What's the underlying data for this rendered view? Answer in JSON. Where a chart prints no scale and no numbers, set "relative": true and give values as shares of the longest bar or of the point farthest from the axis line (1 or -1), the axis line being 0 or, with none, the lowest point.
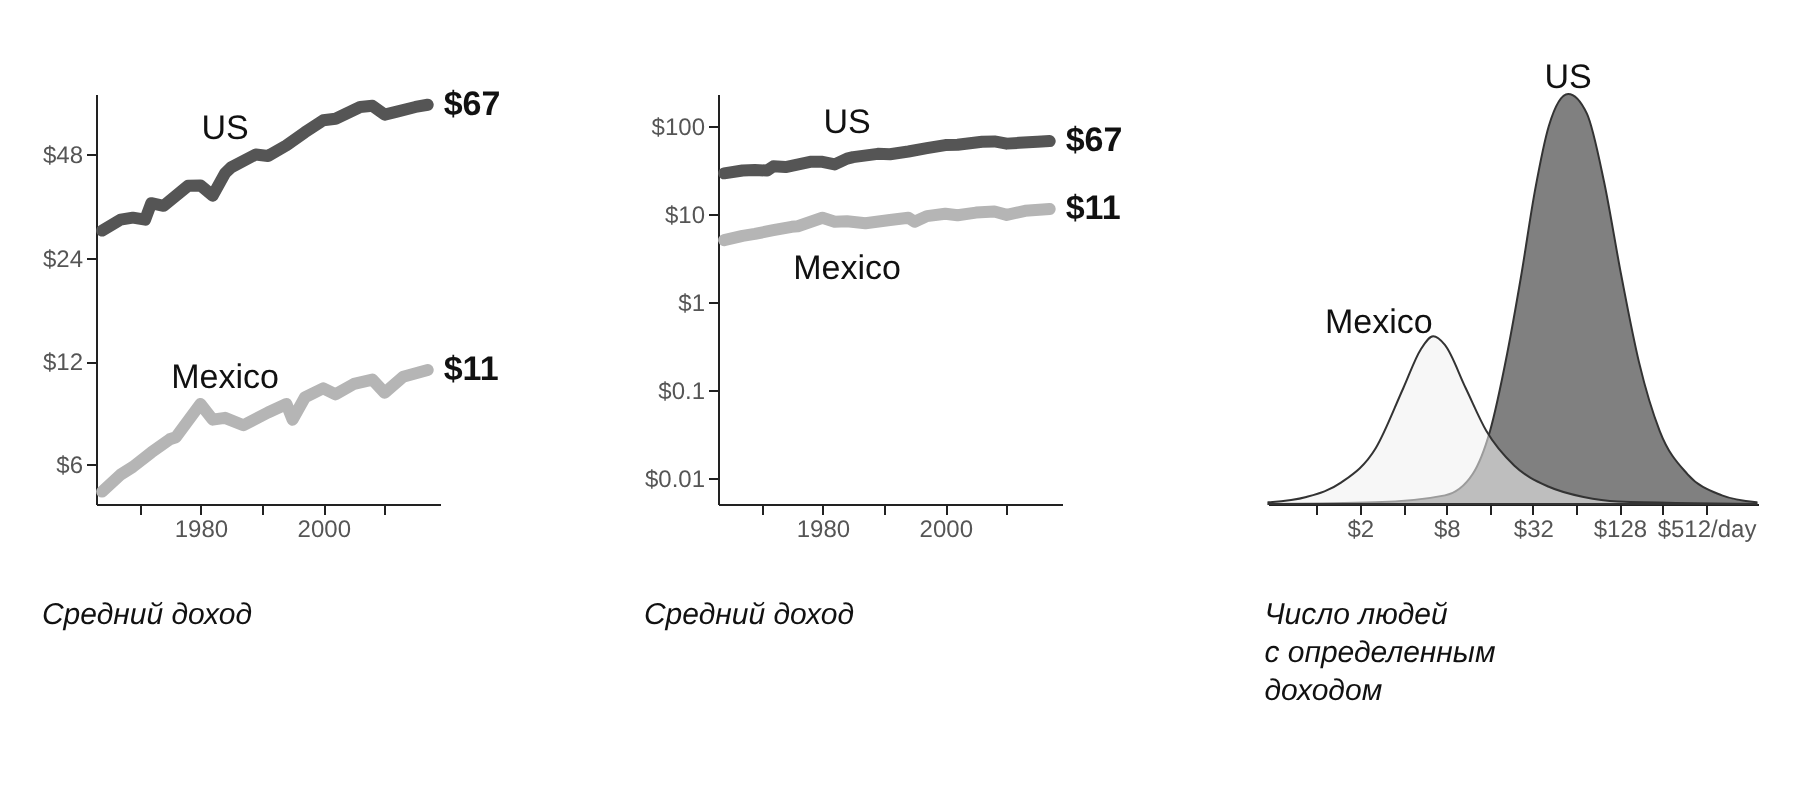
{
  "chart_data": [
    {
      "type": "line",
      "annotations": [
        "Средний доход"
      ],
      "log": "y",
      "grid": false,
      "xlim": [
        1963,
        2019
      ],
      "xticks": [
        {
          "value": 1970,
          "label": null
        },
        1980,
        {
          "value": 1990,
          "label": null
        },
        2000,
        {
          "value": 2010,
          "label": null
        }
      ],
      "ylim": [
        4.6,
        72
      ],
      "yticks": [
        {
          "value": 6,
          "label": "$6"
        },
        {
          "value": 12,
          "label": "$12"
        },
        {
          "value": 24,
          "label": "$24"
        },
        {
          "value": 48,
          "label": "$48"
        }
      ],
      "series": [
        {
          "name": "US",
          "color": "#555555",
          "x": [
            1964,
            1967,
            1969,
            1971,
            1972,
            1974,
            1978,
            1980,
            1982,
            1984,
            1985,
            1989,
            1991,
            1994,
            1997,
            2000,
            2002,
            2006,
            2008,
            2010,
            2012,
            2015,
            2017
          ],
          "values": [
            28.8,
            31,
            31.4,
            31,
            34.6,
            34,
            38.9,
            39,
            36.4,
            42.3,
            44,
            48,
            47.5,
            51,
            55.7,
            60.4,
            61,
            66,
            66.5,
            62.7,
            64,
            66,
            67
          ],
          "value_labels": [
            null,
            null,
            null,
            null,
            null,
            null,
            null,
            null,
            null,
            null,
            null,
            null,
            null,
            null,
            null,
            null,
            null,
            null,
            null,
            null,
            null,
            null,
            "$67"
          ]
        },
        {
          "name": "Mexico",
          "color": "#b5b5b5",
          "x": [
            1964,
            1967,
            1969,
            1972,
            1975,
            1976,
            1980,
            1982,
            1984,
            1987,
            1991,
            1994,
            1995,
            1997,
            2000,
            2002,
            2005,
            2008,
            2010,
            2013,
            2017
          ],
          "values": [
            5.0,
            5.6,
            5.9,
            6.5,
            7.1,
            7.2,
            9.0,
            8.1,
            8.2,
            7.8,
            8.5,
            9.0,
            8.1,
            9.4,
            10.0,
            9.6,
            10.3,
            10.6,
            9.7,
            10.8,
            11.3
          ],
          "value_labels": [
            null,
            null,
            null,
            null,
            null,
            null,
            null,
            null,
            null,
            null,
            null,
            null,
            null,
            null,
            null,
            null,
            null,
            null,
            null,
            null,
            "$11"
          ]
        }
      ]
    },
    {
      "type": "line",
      "annotations": [
        "Средний доход"
      ],
      "log": "y",
      "grid": false,
      "xlim": [
        1963,
        2019
      ],
      "xticks": [
        {
          "value": 1970,
          "label": null
        },
        1980,
        {
          "value": 1990,
          "label": null
        },
        2000,
        {
          "value": 2010,
          "label": null
        }
      ],
      "ylim": [
        0.005,
        230
      ],
      "yticks": [
        {
          "value": 0.01,
          "label": "$0.01"
        },
        {
          "value": 0.1,
          "label": "$0.1"
        },
        {
          "value": 1,
          "label": "$1"
        },
        {
          "value": 10,
          "label": "$10"
        },
        {
          "value": 100,
          "label": "$100"
        }
      ],
      "series": [
        {
          "name": "US",
          "color": "#555555",
          "x": [
            1964,
            1967,
            1969,
            1971,
            1972,
            1974,
            1978,
            1980,
            1982,
            1984,
            1985,
            1989,
            1991,
            1994,
            1997,
            2000,
            2002,
            2006,
            2008,
            2010,
            2012,
            2015,
            2017
          ],
          "values": [
            28.8,
            31,
            31.4,
            31,
            34.6,
            34,
            38.9,
            39,
            36.4,
            42.3,
            44,
            48,
            47.5,
            51,
            55.7,
            60.4,
            61,
            66,
            66.5,
            62.7,
            64,
            66,
            67
          ],
          "value_labels": [
            null,
            null,
            null,
            null,
            null,
            null,
            null,
            null,
            null,
            null,
            null,
            null,
            null,
            null,
            null,
            null,
            null,
            null,
            null,
            null,
            null,
            null,
            "$67"
          ]
        },
        {
          "name": "Mexico",
          "color": "#b5b5b5",
          "x": [
            1964,
            1967,
            1969,
            1972,
            1975,
            1976,
            1980,
            1982,
            1984,
            1987,
            1991,
            1994,
            1995,
            1997,
            2000,
            2002,
            2005,
            2008,
            2010,
            2013,
            2017
          ],
          "values": [
            5.0,
            5.6,
            5.9,
            6.5,
            7.1,
            7.2,
            9.0,
            8.1,
            8.2,
            7.8,
            8.5,
            9.0,
            8.1,
            9.4,
            10.0,
            9.6,
            10.3,
            10.6,
            9.7,
            10.8,
            11.3
          ],
          "value_labels": [
            null,
            null,
            null,
            null,
            null,
            null,
            null,
            null,
            null,
            null,
            null,
            null,
            null,
            null,
            null,
            null,
            null,
            null,
            null,
            null,
            "$11"
          ]
        }
      ]
    },
    {
      "type": "area",
      "annotations": [
        "Число людей\nс определенным\nдоходом"
      ],
      "log": "x",
      "grid": false,
      "relative": true,
      "tick_labels": "x",
      "xlim": [
        0.46,
        1177
      ],
      "xticks": [
        {
          "value": 1,
          "label": null
        },
        {
          "value": 2,
          "label": "$2"
        },
        {
          "value": 4,
          "label": null
        },
        {
          "value": 8,
          "label": "$8"
        },
        {
          "value": 16,
          "label": null
        },
        {
          "value": 32,
          "label": "$32"
        },
        {
          "value": 64,
          "label": null
        },
        {
          "value": 128,
          "label": "$128"
        },
        {
          "value": 256,
          "label": null
        },
        {
          "value": 512,
          "label": "$512/day"
        }
      ],
      "series": [
        {
          "name": "US",
          "color": "#808080",
          "x": [
            0.463,
            2.58,
            7.82,
            12.2,
            16.1,
            21.2,
            26.5,
            33.1,
            41.3,
            56.3,
            76,
            100,
            132,
            175,
            244,
            380,
            661,
            1150
          ],
          "values": [
            0,
            0.004,
            0.021,
            0.073,
            0.178,
            0.367,
            0.556,
            0.765,
            0.922,
            1,
            0.952,
            0.786,
            0.556,
            0.346,
            0.178,
            0.073,
            0.021,
            0.004
          ]
        },
        {
          "name": "Mexico",
          "color": "#f0f0f0",
          "x": [
            0.463,
            0.85,
            1.48,
            2.58,
            4.02,
            5.31,
            6.48,
            7.82,
            10.9,
            15.2,
            23.7,
            41.3,
            72,
            125,
            1150
          ],
          "values": [
            0.004,
            0.017,
            0.052,
            0.136,
            0.283,
            0.377,
            0.409,
            0.388,
            0.283,
            0.178,
            0.094,
            0.042,
            0.017,
            0.006,
            0
          ]
        }
      ]
    }
  ]
}
